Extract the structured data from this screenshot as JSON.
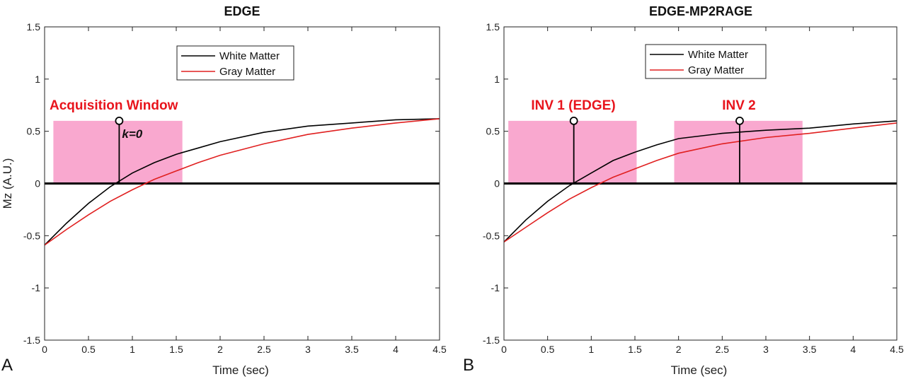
{
  "chart_data": [
    {
      "panel_label": "A",
      "type": "line",
      "title": "EDGE",
      "xlabel": "Time (sec)",
      "ylabel": "Mz (A.U.)",
      "xlim": [
        0,
        4.5
      ],
      "ylim": [
        -1.5,
        1.5
      ],
      "xticks": [
        "0",
        "0.5",
        "1",
        "1.5",
        "2",
        "2.5",
        "3",
        "3.5",
        "4",
        "4.5"
      ],
      "yticks": [
        "-1.5",
        "-1",
        "-0.5",
        "0",
        "0.5",
        "1",
        "1.5"
      ],
      "grid": false,
      "legend_position": "top-center",
      "series": [
        {
          "name": "White Matter",
          "color": "#000000",
          "x": [
            0,
            0.25,
            0.5,
            0.75,
            1,
            1.25,
            1.5,
            1.75,
            2,
            2.5,
            3,
            3.5,
            4,
            4.5
          ],
          "y": [
            -0.59,
            -0.38,
            -0.19,
            -0.03,
            0.1,
            0.2,
            0.28,
            0.34,
            0.4,
            0.49,
            0.55,
            0.58,
            0.61,
            0.62
          ]
        },
        {
          "name": "Gray Matter",
          "color": "#e02020",
          "x": [
            0,
            0.25,
            0.5,
            0.75,
            1,
            1.25,
            1.5,
            1.75,
            2,
            2.5,
            3,
            3.5,
            4,
            4.5
          ],
          "y": [
            -0.59,
            -0.44,
            -0.3,
            -0.17,
            -0.06,
            0.04,
            0.12,
            0.2,
            0.27,
            0.38,
            0.47,
            0.53,
            0.58,
            0.62
          ]
        }
      ],
      "windows": [
        {
          "label": "Acquisition Window",
          "x_start": 0.1,
          "x_end": 1.57,
          "height": 0.6
        }
      ],
      "stems": [
        {
          "x": 0.85,
          "y": 0.6,
          "label": "k=0"
        }
      ]
    },
    {
      "panel_label": "B",
      "type": "line",
      "title": "EDGE-MP2RAGE",
      "xlabel": "Time (sec)",
      "ylabel": "",
      "xlim": [
        0,
        4.5
      ],
      "ylim": [
        -1.5,
        1.5
      ],
      "xticks": [
        "0",
        "0.5",
        "1",
        "1.5",
        "2",
        "2.5",
        "3",
        "3.5",
        "4",
        "4.5"
      ],
      "yticks": [
        "-1.5",
        "-1",
        "-0.5",
        "0",
        "0.5",
        "1",
        "1.5"
      ],
      "grid": false,
      "legend_position": "top-center",
      "series": [
        {
          "name": "White Matter",
          "color": "#000000",
          "x": [
            0,
            0.25,
            0.5,
            0.75,
            1,
            1.25,
            1.5,
            1.75,
            2,
            2.5,
            3,
            3.5,
            4,
            4.5
          ],
          "y": [
            -0.56,
            -0.35,
            -0.17,
            -0.02,
            0.1,
            0.22,
            0.3,
            0.37,
            0.43,
            0.48,
            0.51,
            0.53,
            0.57,
            0.6
          ]
        },
        {
          "name": "Gray Matter",
          "color": "#e02020",
          "x": [
            0,
            0.25,
            0.5,
            0.75,
            1,
            1.25,
            1.5,
            1.75,
            2,
            2.5,
            3,
            3.5,
            4,
            4.5
          ],
          "y": [
            -0.56,
            -0.42,
            -0.28,
            -0.15,
            -0.04,
            0.06,
            0.14,
            0.22,
            0.29,
            0.38,
            0.44,
            0.48,
            0.53,
            0.58
          ]
        }
      ],
      "windows": [
        {
          "label": "INV 1 (EDGE)",
          "x_start": 0.05,
          "x_end": 1.52,
          "height": 0.6
        },
        {
          "label": "INV 2",
          "x_start": 1.95,
          "x_end": 3.42,
          "height": 0.6
        }
      ],
      "stems": [
        {
          "x": 0.8,
          "y": 0.6,
          "label": ""
        },
        {
          "x": 2.7,
          "y": 0.6,
          "label": ""
        }
      ]
    }
  ],
  "colors": {
    "window_fill": "#f9a8cf",
    "annotation_red": "#e8141c",
    "zero_line": "#000000"
  }
}
